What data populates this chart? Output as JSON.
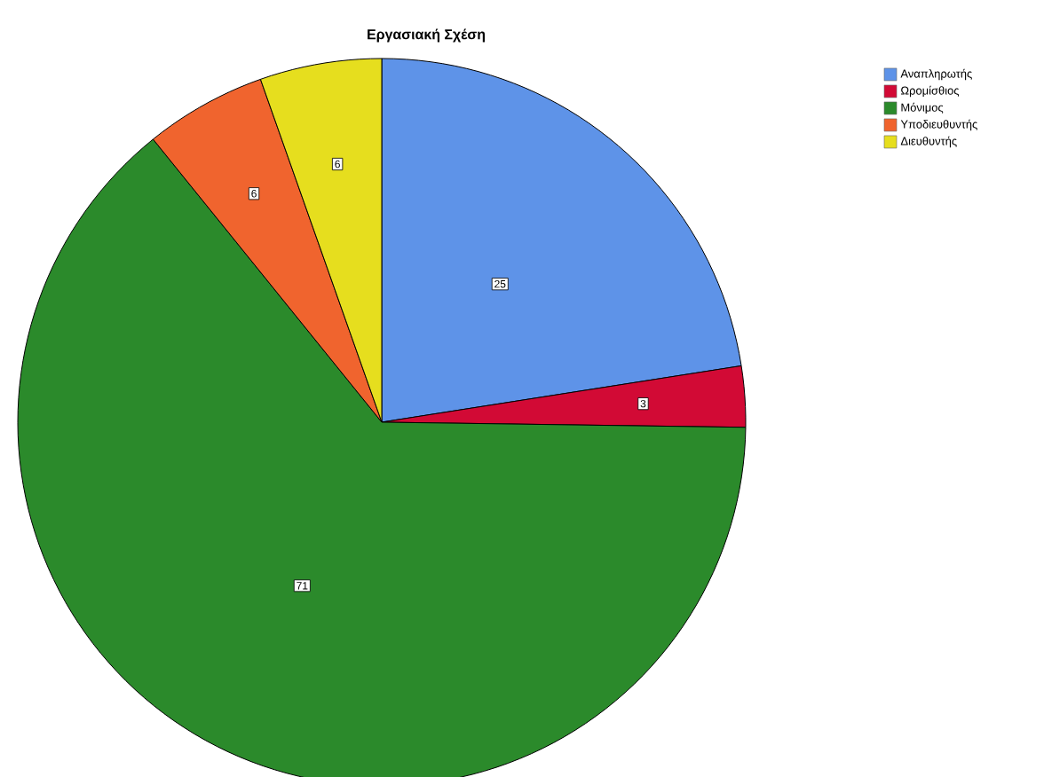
{
  "chart_data": {
    "type": "pie",
    "title": "Εργασιακή Σχέση",
    "categories": [
      "Αναπληρωτής",
      "Ωρομίσθιος",
      "Μόνιμος",
      "Υποδιευθυντής",
      "Διευθυντής"
    ],
    "values": [
      25,
      3,
      71,
      6,
      6
    ],
    "colors": [
      "#5e93e8",
      "#d20a35",
      "#2b8a2b",
      "#f0642e",
      "#e6de1e"
    ],
    "data_labels": true,
    "legend": "top right"
  }
}
